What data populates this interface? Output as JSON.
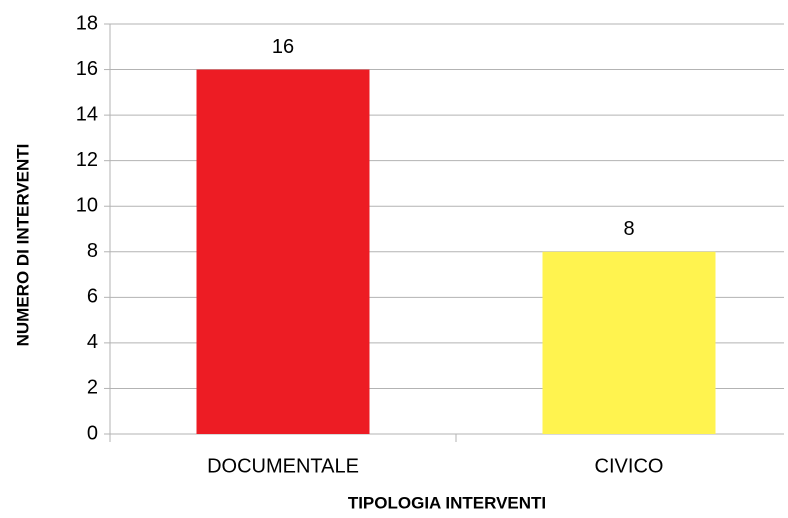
{
  "chart_data": {
    "type": "bar",
    "x_label": "TIPOLOGIA INTERVENTI",
    "y_label": "NUMERO DI INTERVENTI",
    "categories": [
      "DOCUMENTALE",
      "CIVICO"
    ],
    "values": [
      16,
      8
    ],
    "colors": [
      "#ed1c24",
      "#fff34f"
    ],
    "ylim": [
      0,
      18
    ],
    "yticks": [
      0,
      2,
      4,
      6,
      8,
      10,
      12,
      14,
      16,
      18
    ],
    "grid": true
  }
}
